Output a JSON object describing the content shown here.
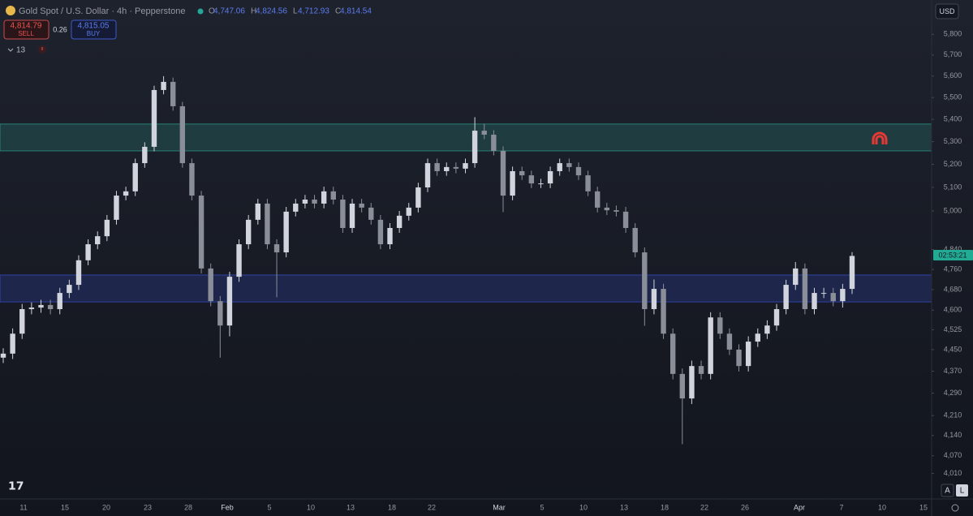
{
  "header": {
    "symbol": "Gold Spot / U.S. Dollar · 4h · Pepperstone",
    "ohlc": [
      {
        "key": "O",
        "value": "4,747.06"
      },
      {
        "key": "H",
        "value": "4,824.56"
      },
      {
        "key": "L",
        "value": "4,712.93"
      },
      {
        "key": "C",
        "value": "4,814.54"
      }
    ]
  },
  "trade": {
    "sell_price": "4,814.79",
    "sell": "SELL",
    "spread": "0.26",
    "buy_price": "4,815.05",
    "buy": "BUY"
  },
  "indicators": "13",
  "currency": "USD",
  "countdown": "02:53:21",
  "buttons": [
    "A",
    "L"
  ],
  "chart_data": {
    "type": "candlestick",
    "log_scale": true,
    "grid": false,
    "up_color": "#d1d4dc",
    "down_color": "#8a8e99",
    "ylim": [
      3925,
      5970
    ],
    "yticks": [
      {
        "value": 5800,
        "label": "5,800"
      },
      {
        "value": 5700,
        "label": "5,700"
      },
      {
        "value": 5600,
        "label": "5,600"
      },
      {
        "value": 5500,
        "label": "5,500"
      },
      {
        "value": 5400,
        "label": "5,400"
      },
      {
        "value": 5300,
        "label": "5,300"
      },
      {
        "value": 5200,
        "label": "5,200"
      },
      {
        "value": 5100,
        "label": "5,100"
      },
      {
        "value": 5000,
        "label": "5,000"
      },
      {
        "value": 4840,
        "label": "4,840"
      },
      {
        "value": 4760,
        "label": "4,760"
      },
      {
        "value": 4680,
        "label": "4,680"
      },
      {
        "value": 4600,
        "label": "4,600"
      },
      {
        "value": 4525,
        "label": "4,525"
      },
      {
        "value": 4450,
        "label": "4,450"
      },
      {
        "value": 4370,
        "label": "4,370"
      },
      {
        "value": 4290,
        "label": "4,290"
      },
      {
        "value": 4210,
        "label": "4,210"
      },
      {
        "value": 4140,
        "label": "4,140"
      },
      {
        "value": 4070,
        "label": "4,070"
      },
      {
        "value": 4010,
        "label": "4,010"
      }
    ],
    "xticks": [
      "11",
      "15",
      "20",
      "23",
      "28",
      "Feb",
      "5",
      "10",
      "13",
      "18",
      "22",
      "Mar",
      "5",
      "10",
      "13",
      "18",
      "22",
      "26",
      "Apr",
      "7",
      "10",
      "15"
    ],
    "zones": [
      {
        "low": 5259,
        "high": 5379,
        "color": "#2a8a7c"
      },
      {
        "low": 4632,
        "high": 4738,
        "color": "#3347b0"
      }
    ],
    "open": [
      4420,
      4435,
      4510,
      4604,
      4610,
      4620,
      4604,
      4667,
      4699,
      4797,
      4862,
      4895,
      4963,
      5065,
      5083,
      5205,
      5277,
      5535,
      5573,
      5460,
      5205,
      5065,
      4764,
      4635,
      4541,
      4731,
      4862,
      4963,
      5031,
      4862,
      4829,
      4997,
      5031,
      5048,
      5031,
      5083,
      5048,
      4929,
      5031,
      5014,
      4963,
      4862,
      4929,
      4980,
      5014,
      5100,
      5205,
      5170,
      5188,
      5181,
      5205,
      5349,
      5331,
      5259,
      5065,
      5170,
      5152,
      5117,
      5117,
      5170,
      5205,
      5188,
      5152,
      5083,
      5014,
      5003,
      4997,
      4929,
      4829,
      4604,
      4683,
      4510,
      4360,
      4271,
      4389,
      4360,
      4572,
      4510,
      4450,
      4389,
      4480,
      4510,
      4541,
      4604,
      4699,
      4764,
      4604,
      4667,
      4667,
      4635,
      4683
    ],
    "high": [
      4455,
      4530,
      4624,
      4630,
      4640,
      4640,
      4687,
      4719,
      4817,
      4882,
      4915,
      4983,
      5085,
      5103,
      5225,
      5297,
      5555,
      5600,
      5593,
      5480,
      5225,
      5085,
      4784,
      4655,
      4751,
      4882,
      4983,
      5051,
      5051,
      4882,
      5017,
      5051,
      5068,
      5068,
      5103,
      5103,
      5068,
      5051,
      5051,
      5034,
      4983,
      4949,
      5000,
      5034,
      5120,
      5225,
      5225,
      5208,
      5208,
      5225,
      5410,
      5380,
      5351,
      5279,
      5190,
      5190,
      5172,
      5137,
      5190,
      5225,
      5225,
      5208,
      5172,
      5103,
      5034,
      5023,
      5017,
      4949,
      4849,
      4720,
      4703,
      4530,
      4380,
      4409,
      4409,
      4592,
      4592,
      4530,
      4470,
      4500,
      4530,
      4561,
      4624,
      4719,
      4790,
      4784,
      4687,
      4687,
      4687,
      4703,
      4830
    ],
    "low": [
      4400,
      4415,
      4490,
      4584,
      4590,
      4584,
      4584,
      4647,
      4679,
      4777,
      4842,
      4875,
      4943,
      5045,
      5063,
      5185,
      5257,
      5515,
      5440,
      5185,
      5045,
      4744,
      4615,
      4420,
      4500,
      4711,
      4842,
      4943,
      4842,
      4650,
      4809,
      4977,
      5011,
      5011,
      5011,
      5028,
      4909,
      4909,
      4994,
      4943,
      4842,
      4842,
      4909,
      4960,
      4994,
      5080,
      5150,
      5150,
      5161,
      5161,
      5185,
      5311,
      5239,
      4995,
      5045,
      5132,
      5097,
      5097,
      5097,
      5150,
      5168,
      5132,
      5063,
      4994,
      4983,
      4977,
      4909,
      4809,
      4540,
      4584,
      4490,
      4340,
      4110,
      4251,
      4340,
      4340,
      4490,
      4430,
      4369,
      4369,
      4460,
      4490,
      4521,
      4584,
      4679,
      4584,
      4584,
      4647,
      4615,
      4610,
      4663
    ],
    "close": [
      4435,
      4510,
      4604,
      4610,
      4620,
      4604,
      4667,
      4699,
      4797,
      4862,
      4895,
      4963,
      5065,
      5083,
      5205,
      5277,
      5535,
      5573,
      5460,
      5205,
      5065,
      4764,
      4635,
      4541,
      4731,
      4862,
      4963,
      5031,
      4862,
      4829,
      4997,
      5031,
      5048,
      5031,
      5083,
      5048,
      4929,
      5031,
      5014,
      4963,
      4862,
      4929,
      4980,
      5014,
      5100,
      5205,
      5170,
      5188,
      5181,
      5205,
      5349,
      5331,
      5259,
      5065,
      5170,
      5152,
      5117,
      5117,
      5170,
      5205,
      5188,
      5152,
      5083,
      5014,
      5003,
      4997,
      4929,
      4829,
      4604,
      4683,
      4510,
      4360,
      4271,
      4389,
      4360,
      4572,
      4510,
      4450,
      4389,
      4480,
      4510,
      4541,
      4604,
      4699,
      4764,
      4604,
      4667,
      4667,
      4635,
      4683,
      4814.54
    ]
  }
}
